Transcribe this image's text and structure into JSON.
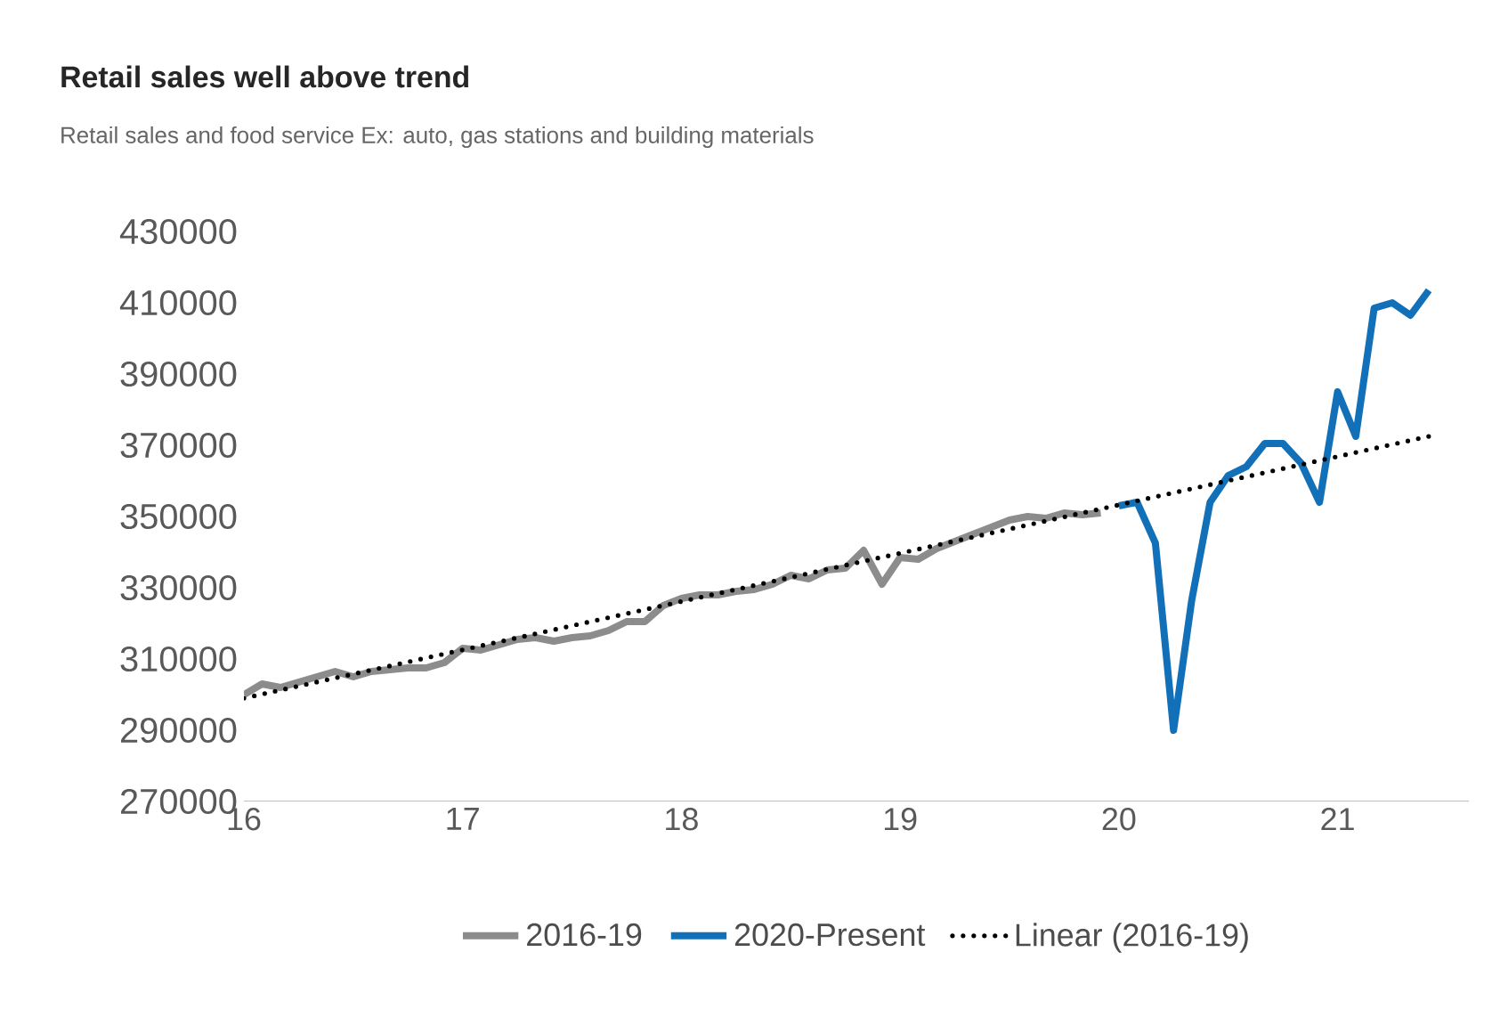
{
  "chart_data": {
    "type": "line",
    "title": "Retail sales well above trend",
    "subtitle": "Retail sales and food service Ex: auto, gas stations and building materials",
    "xlim": [
      16,
      21.6
    ],
    "xticks": [
      16,
      17,
      18,
      19,
      20,
      21
    ],
    "ylim": [
      270000,
      430000
    ],
    "yticks": [
      270000,
      290000,
      310000,
      330000,
      350000,
      370000,
      390000,
      410000,
      430000
    ],
    "grid": false,
    "legend": "bottom",
    "marker": "none",
    "series": [
      {
        "name": "2016-19",
        "color": "#8c8c8c",
        "line_style": "solid",
        "x": [
          16.0,
          16.083,
          16.167,
          16.25,
          16.333,
          16.417,
          16.5,
          16.583,
          16.667,
          16.75,
          16.833,
          16.917,
          17.0,
          17.083,
          17.167,
          17.25,
          17.333,
          17.417,
          17.5,
          17.583,
          17.667,
          17.75,
          17.833,
          17.917,
          18.0,
          18.083,
          18.167,
          18.25,
          18.333,
          18.417,
          18.5,
          18.583,
          18.667,
          18.75,
          18.833,
          18.917,
          19.0,
          19.083,
          19.167,
          19.25,
          19.333,
          19.417,
          19.5,
          19.583,
          19.667,
          19.75,
          19.833,
          19.917
        ],
        "values": [
          300000,
          303000,
          302000,
          303500,
          305000,
          306500,
          305000,
          306500,
          307000,
          307500,
          307500,
          309000,
          313000,
          312500,
          314000,
          315500,
          316000,
          315000,
          316000,
          316500,
          318000,
          320500,
          320500,
          325000,
          327000,
          328000,
          328000,
          329000,
          329500,
          331000,
          333500,
          332500,
          335000,
          335500,
          340500,
          331000,
          338500,
          338000,
          341000,
          343000,
          345000,
          347000,
          349000,
          350000,
          349500,
          351000,
          350500,
          351000
        ]
      },
      {
        "name": "2020-Present",
        "color": "#1170b8",
        "line_style": "solid",
        "x": [
          20.0,
          20.083,
          20.167,
          20.25,
          20.333,
          20.417,
          20.5,
          20.583,
          20.667,
          20.75,
          20.833,
          20.917,
          21.0,
          21.083,
          21.167,
          21.25,
          21.333,
          21.417
        ],
        "values": [
          353000,
          354000,
          342500,
          290000,
          326500,
          354000,
          361500,
          364000,
          370500,
          370500,
          365000,
          354000,
          385000,
          372500,
          408500,
          410000,
          406500,
          413500
        ]
      },
      {
        "name": "Linear (2016-19)",
        "color": "#000000",
        "line_style": "dotted",
        "x": [
          16.0,
          21.417
        ],
        "values": [
          299000,
          372500
        ]
      }
    ]
  }
}
